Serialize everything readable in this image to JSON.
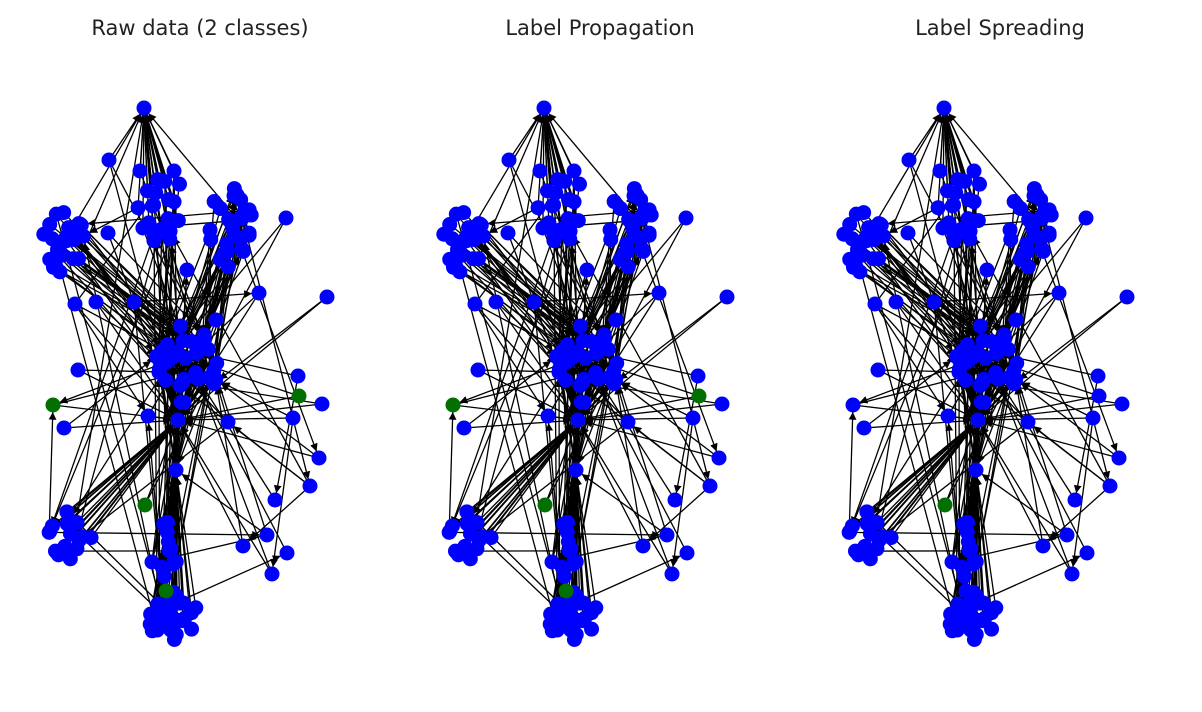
{
  "figure": {
    "panels": [
      {
        "title": "Raw data (2 classes)"
      },
      {
        "title": "Label Propagation"
      },
      {
        "title": "Label Spreading"
      }
    ]
  },
  "colors": {
    "node_default": "#0000ff",
    "node_labeled": "#007000",
    "edge": "#000000",
    "title_text": "#222222"
  }
}
